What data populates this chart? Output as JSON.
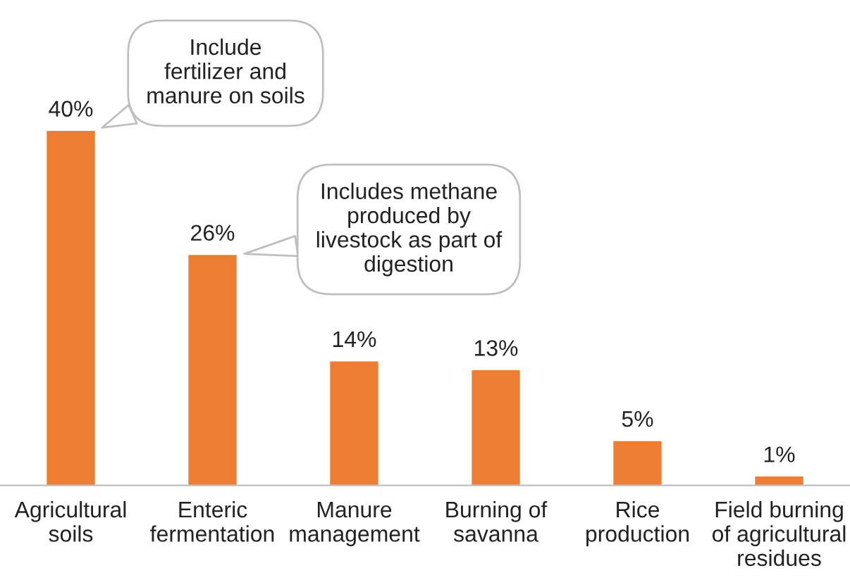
{
  "chart_data": {
    "type": "bar",
    "categories": [
      "Agricultural\nsoils",
      "Enteric\nfermentation",
      "Manure\nmanagement",
      "Burning of\nsavanna",
      "Rice\nproduction",
      "Field burning\nof agricultural\nresidues"
    ],
    "values": [
      40,
      26,
      14,
      13,
      5,
      1
    ],
    "value_labels": [
      "40%",
      "26%",
      "14%",
      "13%",
      "5%",
      "1%"
    ],
    "color": "#ed7d31",
    "annotations": [
      "Include\nfertilizer and\nmanure on soils",
      "Includes methane\nproduced by\nlivestock as part of\ndigestion"
    ],
    "grid": false,
    "legend": false
  }
}
